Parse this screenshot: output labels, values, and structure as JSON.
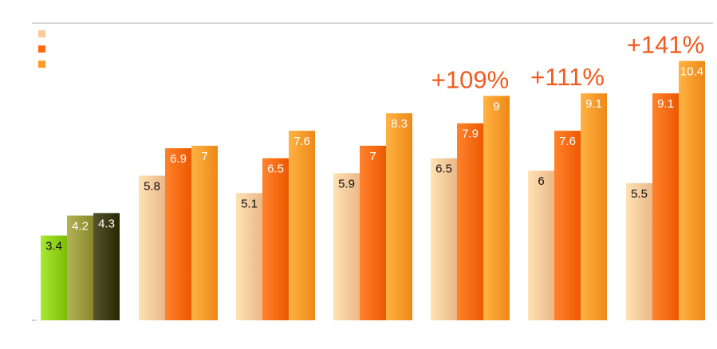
{
  "chart_data": {
    "type": "bar",
    "title": "",
    "xlabel": "",
    "ylabel": "",
    "ylim": [
      0,
      11.2
    ],
    "grid": false,
    "legend_position": "top-left",
    "categories": [
      "",
      "",
      "",
      "",
      "",
      "",
      ""
    ],
    "series": [
      {
        "values": [
          3.4,
          5.8,
          5.1,
          5.9,
          6.5,
          6.0,
          5.5
        ]
      },
      {
        "values": [
          4.2,
          6.9,
          6.5,
          7.0,
          7.9,
          7.6,
          9.1
        ]
      },
      {
        "values": [
          4.3,
          7.0,
          7.6,
          8.3,
          9.0,
          9.1,
          10.4
        ]
      }
    ],
    "data_labels": [
      [
        "3.4",
        "4.2",
        "4.3"
      ],
      [
        "5.8",
        "6.9",
        "7"
      ],
      [
        "5.1",
        "6.5",
        "7.6"
      ],
      [
        "5.9",
        "7",
        "8.3"
      ],
      [
        "6.5",
        "7.9",
        "9"
      ],
      [
        "6",
        "7.6",
        "9.1"
      ],
      [
        "5.5",
        "9.1",
        "10.4"
      ]
    ],
    "annotations": [
      {
        "group": 4,
        "text": "+109%"
      },
      {
        "group": 5,
        "text": "+111%"
      },
      {
        "group": 6,
        "text": "+141%"
      }
    ],
    "colors": {
      "series": [
        "#fcc99a",
        "#ff6a13",
        "#ff9a2a"
      ],
      "first_group": [
        "#8fcf18",
        "#9a9a3c",
        "#3a3a14"
      ],
      "label_dark": "#111111",
      "label_light": "#ffffff",
      "annotation": "#f25a1e",
      "top_rule": "#cccccc"
    }
  }
}
